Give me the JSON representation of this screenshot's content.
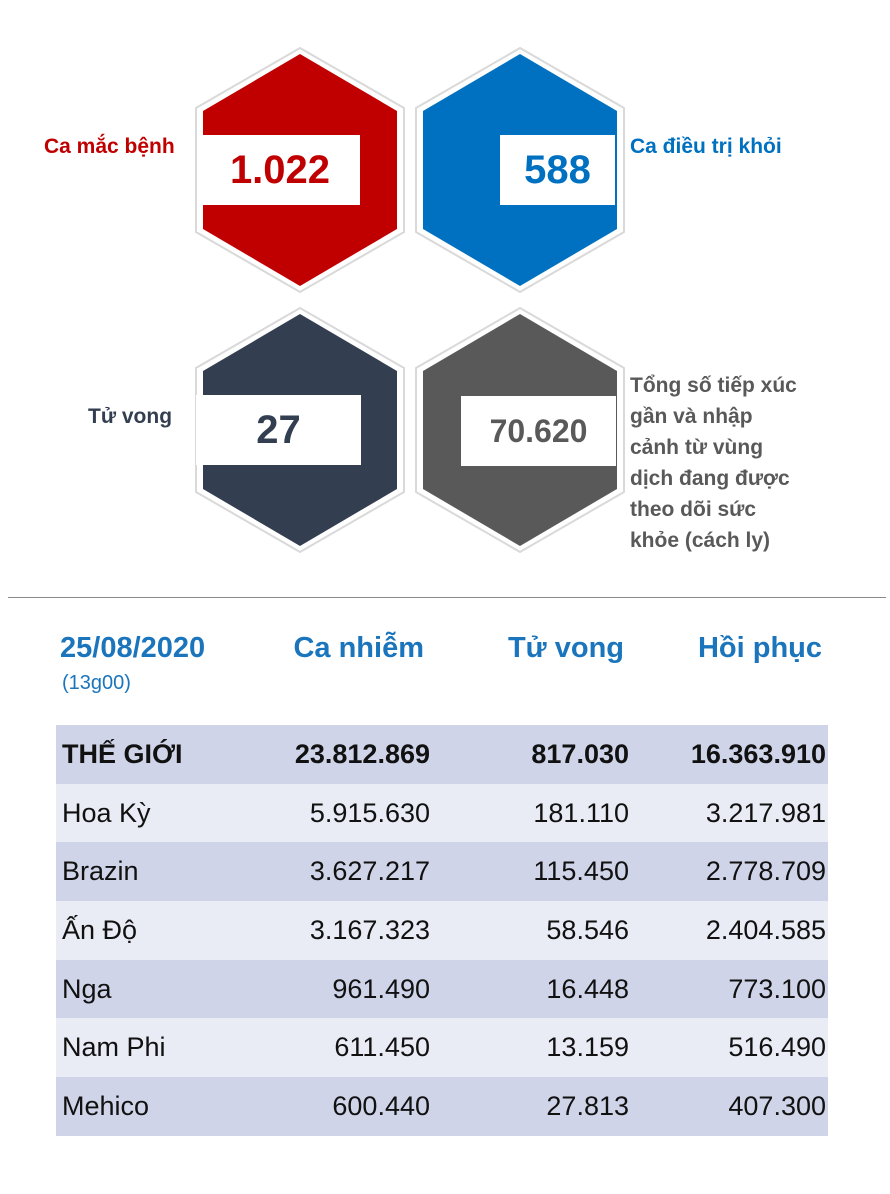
{
  "stats": {
    "cases": {
      "label": "Ca mắc bệnh",
      "value": "1.022",
      "color": "#c00000"
    },
    "recovered": {
      "label": "Ca điều trị khỏi",
      "value": "588",
      "color": "#0070c0"
    },
    "deaths": {
      "label": "Tử vong",
      "value": "27",
      "color": "#333f50"
    },
    "monitored": {
      "label_lines": [
        "Tổng số tiếp xúc",
        "gần và nhập",
        "cảnh từ vùng",
        "dịch đang được",
        "theo dõi sức",
        "khỏe (cách ly)"
      ],
      "value": "70.620",
      "color": "#595959"
    }
  },
  "table": {
    "date": "25/08/2020",
    "time": "(13g00)",
    "headers": [
      "Ca nhiễm",
      "Tử vong",
      "Hồi phục"
    ],
    "rows": [
      {
        "country": "THẾ GIỚI",
        "cases": "23.812.869",
        "deaths": "817.030",
        "recovered": "16.363.910"
      },
      {
        "country": "Hoa Kỳ",
        "cases": "5.915.630",
        "deaths": "181.110",
        "recovered": "3.217.981"
      },
      {
        "country": "Brazin",
        "cases": "3.627.217",
        "deaths": "115.450",
        "recovered": "2.778.709"
      },
      {
        "country": "Ấn Độ",
        "cases": "3.167.323",
        "deaths": "58.546",
        "recovered": "2.404.585"
      },
      {
        "country": "Nga",
        "cases": "961.490",
        "deaths": "16.448",
        "recovered": "773.100"
      },
      {
        "country": "Nam Phi",
        "cases": "611.450",
        "deaths": "13.159",
        "recovered": "516.490"
      },
      {
        "country": "Mehico",
        "cases": "600.440",
        "deaths": "27.813",
        "recovered": "407.300"
      }
    ]
  }
}
